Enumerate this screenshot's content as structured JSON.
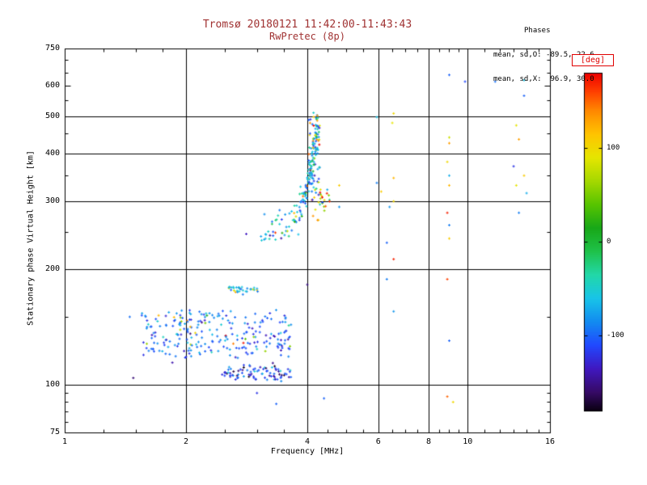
{
  "chart_data": {
    "type": "scatter",
    "title": "Tromsø 20180121 11:42:00-11:43:43",
    "subtitle": "RwPretec (8p)",
    "annotations": {
      "header": "Phases",
      "o_line": "mean, sd,O: -89.5, 22.6",
      "x_line": "mean, sd,X:  96.9, 30.0"
    },
    "xlabel": "Frequency [MHz]",
    "ylabel": "Stationary phase Virtual Height [km]",
    "x_scale": "log",
    "y_scale": "log",
    "x_range": [
      1,
      16
    ],
    "y_range": [
      75,
      750
    ],
    "x_ticks": [
      1,
      2,
      4,
      6,
      8,
      10,
      16
    ],
    "y_ticks": [
      75,
      100,
      200,
      300,
      400,
      500,
      600,
      750
    ],
    "x_minor_ticks": [
      1.25,
      1.5,
      1.75,
      2.5,
      3,
      3.5,
      4.5,
      5,
      5.5,
      6.5,
      7,
      7.5,
      8.5,
      9,
      9.5,
      11,
      12,
      13,
      14,
      15
    ],
    "y_minor_ticks": [
      80,
      85,
      90,
      95,
      150,
      250,
      350,
      450,
      550,
      650,
      700
    ],
    "x_gridlines": [
      2,
      4,
      6,
      8,
      10
    ],
    "y_gridlines": [
      100,
      200,
      300,
      400,
      500
    ],
    "grid": true,
    "title_color": "#a03232",
    "axis_color": "#000000",
    "colorbar": {
      "label": "[deg]",
      "label_color": "#e00000",
      "ticks": [
        100,
        0,
        -100
      ],
      "range": [
        -180,
        180
      ],
      "stops": [
        [
          -180,
          "#0a0010"
        ],
        [
          -160,
          "#360a66"
        ],
        [
          -135,
          "#4018c0"
        ],
        [
          -110,
          "#2148ff"
        ],
        [
          -85,
          "#128cf0"
        ],
        [
          -60,
          "#18c4e8"
        ],
        [
          -35,
          "#22d8a8"
        ],
        [
          -10,
          "#1fc24a"
        ],
        [
          15,
          "#18a818"
        ],
        [
          40,
          "#58c400"
        ],
        [
          65,
          "#a6d800"
        ],
        [
          90,
          "#e6e600"
        ],
        [
          115,
          "#ffc400"
        ],
        [
          140,
          "#ff8800"
        ],
        [
          160,
          "#ff4000"
        ],
        [
          180,
          "#ee0000"
        ]
      ]
    },
    "points_unit": {
      "x": "MHz",
      "y": "km",
      "color": "deg"
    },
    "series": {
      "clusters": [
        {
          "id": "e-region-blob",
          "count": 250,
          "f_range": [
            1.55,
            3.65
          ],
          "h_bands": [
            152,
            146,
            140,
            134,
            128,
            122
          ],
          "h_sd": 2.6,
          "h_range": [
            116,
            158
          ],
          "outlier_frac": 0.07,
          "phase_main": [
            -95,
            22
          ],
          "phase_outlier": [
            95,
            45
          ]
        },
        {
          "id": "e-region-lower",
          "count": 85,
          "f_range": [
            2.45,
            3.65
          ],
          "h_bands": [
            107
          ],
          "h_sd": 2.4,
          "h_range": [
            102,
            114
          ],
          "outlier_frac": 0.15,
          "phase_main": [
            -112,
            24
          ],
          "phase_outlier": [
            -160,
            12
          ]
        },
        {
          "id": "e-region-mid",
          "count": 32,
          "f_range": [
            2.55,
            3.02
          ],
          "h_bands": [
            177
          ],
          "h_sd": 1.8,
          "h_range": [
            171,
            183
          ],
          "outlier_frac": 0.12,
          "phase_main": [
            -75,
            25
          ],
          "phase_outlier": [
            95,
            30
          ]
        },
        {
          "id": "f-region-column",
          "count": 48,
          "f_range": [
            4.03,
            4.3
          ],
          "h_uniform": true,
          "h_bands": [
            420
          ],
          "h_sd": 60,
          "h_range": [
            300,
            515
          ],
          "outlier_frac": 0.38,
          "phase_main": [
            -80,
            45
          ],
          "phase_outlier": [
            105,
            45
          ]
        },
        {
          "id": "f-region-orange-clump",
          "count": 24,
          "f_range": [
            4.1,
            4.55
          ],
          "h_bands": [
            302
          ],
          "h_sd": 15,
          "h_range": [
            268,
            340
          ],
          "outlier_frac": 0.2,
          "phase_main": [
            110,
            35
          ],
          "phase_outlier": [
            -60,
            30
          ]
        }
      ],
      "trace": {
        "id": "f-region-trace",
        "count": 170,
        "t_bias": 0.6,
        "f_jitter": 0.035,
        "h_jitter_frac": 0.045,
        "outlier_frac": 0.22,
        "phase_main": [
          -70,
          35
        ],
        "phase_outlier": [
          90,
          45
        ],
        "control": [
          [
            2.62,
            232
          ],
          [
            2.9,
            238
          ],
          [
            3.2,
            247
          ],
          [
            3.5,
            258
          ],
          [
            3.7,
            272
          ],
          [
            3.85,
            292
          ],
          [
            3.95,
            315
          ],
          [
            4.05,
            345
          ],
          [
            4.12,
            380
          ],
          [
            4.18,
            420
          ],
          [
            4.22,
            460
          ]
        ]
      },
      "sparse_points": [
        [
          1.45,
          150,
          -95
        ],
        [
          1.48,
          104,
          -155
        ],
        [
          1.85,
          114,
          -140
        ],
        [
          2.0,
          118,
          -120
        ],
        [
          3.0,
          95,
          -120
        ],
        [
          3.35,
          89,
          -100
        ],
        [
          4.0,
          182,
          -150
        ],
        [
          4.4,
          92,
          -100
        ],
        [
          4.8,
          330,
          110
        ],
        [
          4.8,
          290,
          -80
        ],
        [
          5.95,
          497,
          -60
        ],
        [
          6.55,
          508,
          100
        ],
        [
          6.5,
          480,
          90
        ],
        [
          5.95,
          335,
          -90
        ],
        [
          6.55,
          345,
          120
        ],
        [
          6.1,
          318,
          110
        ],
        [
          6.55,
          300,
          100
        ],
        [
          6.4,
          290,
          -80
        ],
        [
          6.3,
          234,
          -100
        ],
        [
          6.55,
          212,
          170
        ],
        [
          6.3,
          188,
          -90
        ],
        [
          6.55,
          155,
          -80
        ],
        [
          8.9,
          380,
          100
        ],
        [
          9.0,
          640,
          -100
        ],
        [
          9.85,
          615,
          -110
        ],
        [
          11.7,
          615,
          -95
        ],
        [
          9.0,
          440,
          80
        ],
        [
          9.0,
          425,
          130
        ],
        [
          9.0,
          350,
          -70
        ],
        [
          9.0,
          330,
          120
        ],
        [
          8.9,
          280,
          170
        ],
        [
          9.0,
          260,
          -90
        ],
        [
          9.0,
          240,
          110
        ],
        [
          8.9,
          188,
          160
        ],
        [
          9.0,
          130,
          -100
        ],
        [
          8.9,
          93,
          150
        ],
        [
          9.2,
          90,
          100
        ],
        [
          13.8,
          565,
          -100
        ],
        [
          13.8,
          620,
          -60
        ],
        [
          13.2,
          473,
          90
        ],
        [
          13.4,
          435,
          130
        ],
        [
          13.0,
          370,
          -120
        ],
        [
          13.8,
          350,
          110
        ],
        [
          13.2,
          330,
          90
        ],
        [
          13.4,
          280,
          -90
        ],
        [
          14.0,
          315,
          -70
        ]
      ]
    }
  }
}
